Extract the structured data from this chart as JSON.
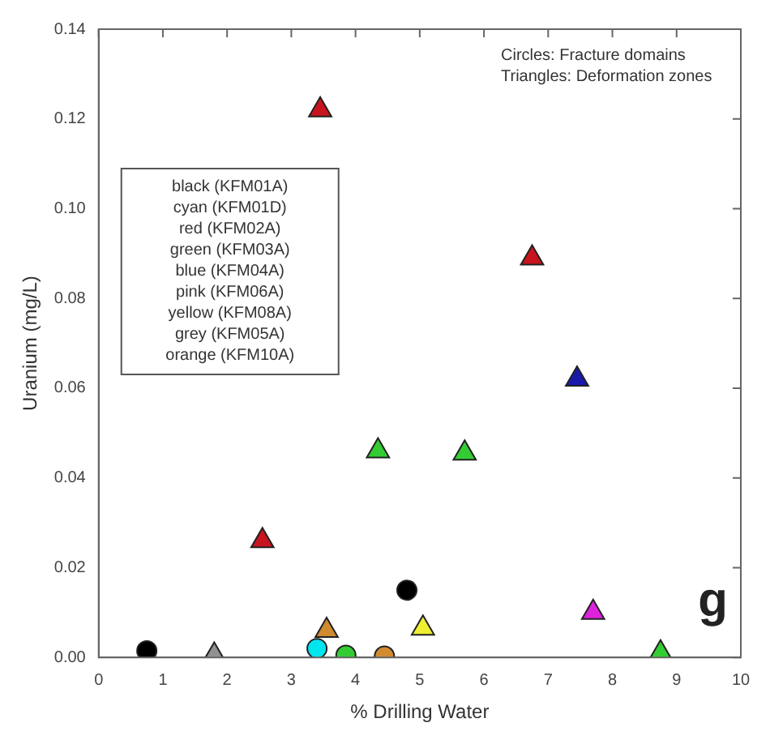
{
  "chart_data": {
    "type": "scatter",
    "xlabel": "% Drilling Water",
    "ylabel": "Uranium (mg/L)",
    "xlim": [
      0,
      10
    ],
    "xticks": [
      0,
      1,
      2,
      3,
      4,
      5,
      6,
      7,
      8,
      9,
      10
    ],
    "ylim": [
      0,
      0.14
    ],
    "yticks": [
      {
        "value": 0,
        "label": "0.00"
      },
      {
        "value": 0.02,
        "label": "0.02"
      },
      {
        "value": 0.04,
        "label": "0.04"
      },
      {
        "value": 0.06,
        "label": "0.06"
      },
      {
        "value": 0.08,
        "label": "0.08"
      },
      {
        "value": 0.1,
        "label": "0.10"
      },
      {
        "value": 0.12,
        "label": "0.12"
      },
      {
        "value": 0.14,
        "label": "0.14"
      }
    ],
    "grid": false,
    "legend": false,
    "annotations": [
      "Circles: Fracture domains",
      "Triangles: Deformation zones",
      "black (KFM01A)",
      "cyan (KFM01D)",
      "red (KFM02A)",
      "green (KFM03A)",
      "blue (KFM04A)",
      "pink (KFM06A)",
      "yellow (KFM08A)",
      "grey (KFM05A)",
      "orange (KFM10A)",
      "g"
    ],
    "series": [
      {
        "color": "#000000",
        "marker": "circle",
        "x": [
          0.75,
          4.8
        ],
        "values": [
          0.0015,
          0.015
        ]
      },
      {
        "color": "#00e5ee",
        "marker": "circle",
        "x": [
          3.4
        ],
        "values": [
          0.002
        ]
      },
      {
        "color": "#c8141e",
        "marker": "triangle",
        "x": [
          2.55,
          3.45,
          6.75
        ],
        "values": [
          0.026,
          0.122,
          0.089
        ]
      },
      {
        "color": "#33cc33",
        "marker": "circle",
        "x": [
          3.85
        ],
        "values": [
          0.0005
        ]
      },
      {
        "color": "#33cc33",
        "marker": "triangle",
        "x": [
          4.35,
          5.7,
          8.75
        ],
        "values": [
          0.046,
          0.0455,
          0.001
        ]
      },
      {
        "color": "#1a1aaa",
        "marker": "triangle",
        "x": [
          7.45
        ],
        "values": [
          0.062
        ]
      },
      {
        "color": "#dd22dd",
        "marker": "triangle",
        "x": [
          7.7
        ],
        "values": [
          0.01
        ]
      },
      {
        "color": "#eeee33",
        "marker": "triangle",
        "x": [
          5.05
        ],
        "values": [
          0.0065
        ]
      },
      {
        "color": "#909090",
        "marker": "triangle",
        "x": [
          1.8
        ],
        "values": [
          0.0005
        ]
      },
      {
        "color": "#d08a30",
        "marker": "triangle",
        "x": [
          3.55
        ],
        "values": [
          0.006
        ]
      },
      {
        "color": "#d08a30",
        "marker": "circle",
        "x": [
          4.45
        ],
        "values": [
          0.0003
        ]
      }
    ]
  }
}
